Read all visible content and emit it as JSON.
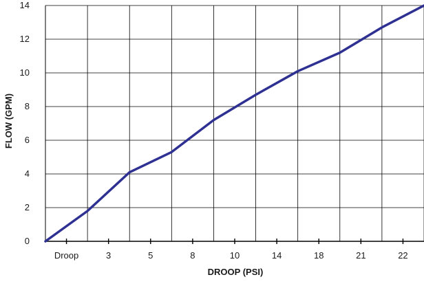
{
  "chart_data": {
    "type": "line",
    "xlabel": "DROOP (PSI)",
    "ylabel": "FLOW (GPM)",
    "ylim": [
      0,
      14
    ],
    "y_ticks": [
      0,
      2,
      4,
      6,
      8,
      10,
      12,
      14
    ],
    "x_tick_labels": [
      "Droop",
      "3",
      "5",
      "8",
      "10",
      "14",
      "18",
      "21",
      "22"
    ],
    "grid": true,
    "series": [
      {
        "color": "#2e3192",
        "x": [
          0,
          1,
          2,
          3,
          4,
          5,
          6,
          7,
          8,
          9
        ],
        "values": [
          0,
          1.8,
          4.1,
          5.3,
          7.2,
          8.7,
          10.1,
          11.2,
          12.7,
          14.0
        ]
      }
    ]
  }
}
